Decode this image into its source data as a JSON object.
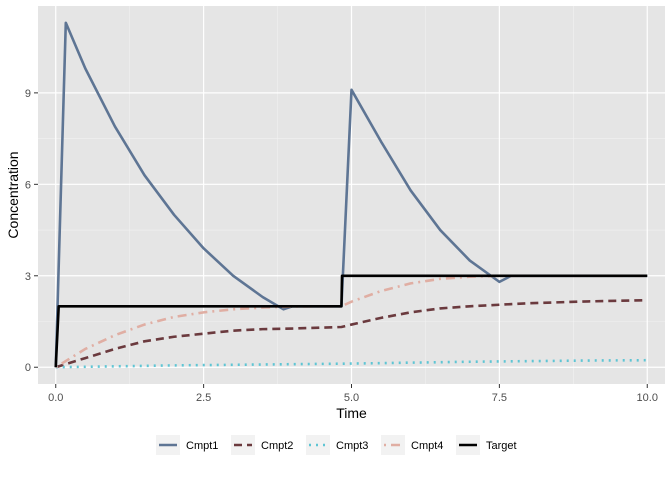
{
  "chart_data": {
    "type": "line",
    "xlabel": "Time",
    "ylabel": "Concentration",
    "xlim": [
      -0.3,
      10.3
    ],
    "ylim": [
      -0.55,
      11.85
    ],
    "x_ticks": [
      0.0,
      2.5,
      5.0,
      7.5,
      10.0
    ],
    "x_tick_labels": [
      "0.0",
      "2.5",
      "5.0",
      "7.5",
      "10.0"
    ],
    "y_ticks": [
      0,
      3,
      6,
      9
    ],
    "y_tick_labels": [
      "0",
      "3",
      "6",
      "9"
    ],
    "grid": true,
    "background": "#e5e5e5",
    "legend_position": "bottom",
    "series": [
      {
        "name": "Cmpt1",
        "color": "#5e7594",
        "dash": "solid",
        "points": [
          [
            0.0,
            0.0
          ],
          [
            0.17,
            11.3
          ],
          [
            0.5,
            9.8
          ],
          [
            1.0,
            7.9
          ],
          [
            1.5,
            6.3
          ],
          [
            2.0,
            5.0
          ],
          [
            2.5,
            3.9
          ],
          [
            3.0,
            3.0
          ],
          [
            3.5,
            2.3
          ],
          [
            3.85,
            1.9
          ],
          [
            4.0,
            2.0
          ],
          [
            4.8,
            2.0
          ],
          [
            4.83,
            2.0
          ],
          [
            5.0,
            9.1
          ],
          [
            5.5,
            7.4
          ],
          [
            6.0,
            5.8
          ],
          [
            6.5,
            4.5
          ],
          [
            7.0,
            3.5
          ],
          [
            7.5,
            2.8
          ],
          [
            7.7,
            3.0
          ],
          [
            10.0,
            3.0
          ]
        ]
      },
      {
        "name": "Cmpt2",
        "color": "#6b3a3e",
        "dash": "dashed",
        "points": [
          [
            0.0,
            0.0
          ],
          [
            0.5,
            0.3
          ],
          [
            1.0,
            0.6
          ],
          [
            1.5,
            0.85
          ],
          [
            2.0,
            1.0
          ],
          [
            2.5,
            1.1
          ],
          [
            3.0,
            1.2
          ],
          [
            3.5,
            1.25
          ],
          [
            4.0,
            1.27
          ],
          [
            4.5,
            1.3
          ],
          [
            4.83,
            1.32
          ],
          [
            5.0,
            1.4
          ],
          [
            5.5,
            1.62
          ],
          [
            6.0,
            1.8
          ],
          [
            6.5,
            1.93
          ],
          [
            7.0,
            2.0
          ],
          [
            7.5,
            2.05
          ],
          [
            8.0,
            2.1
          ],
          [
            9.0,
            2.16
          ],
          [
            10.0,
            2.2
          ]
        ]
      },
      {
        "name": "Cmpt3",
        "color": "#5ec5d4",
        "dash": "dotted",
        "points": [
          [
            0.0,
            0.0
          ],
          [
            1.0,
            0.03
          ],
          [
            2.0,
            0.06
          ],
          [
            3.0,
            0.08
          ],
          [
            4.0,
            0.1
          ],
          [
            5.0,
            0.12
          ],
          [
            6.0,
            0.15
          ],
          [
            7.0,
            0.18
          ],
          [
            8.0,
            0.2
          ],
          [
            9.0,
            0.22
          ],
          [
            10.0,
            0.23
          ]
        ]
      },
      {
        "name": "Cmpt4",
        "color": "#e0aea3",
        "dash": "dotdash",
        "points": [
          [
            0.0,
            0.0
          ],
          [
            0.5,
            0.6
          ],
          [
            1.0,
            1.05
          ],
          [
            1.5,
            1.4
          ],
          [
            2.0,
            1.65
          ],
          [
            2.5,
            1.8
          ],
          [
            3.0,
            1.9
          ],
          [
            3.5,
            1.96
          ],
          [
            4.0,
            1.99
          ],
          [
            4.5,
            2.0
          ],
          [
            4.83,
            2.0
          ],
          [
            5.0,
            2.15
          ],
          [
            5.5,
            2.5
          ],
          [
            6.0,
            2.75
          ],
          [
            6.5,
            2.9
          ],
          [
            7.0,
            2.97
          ],
          [
            7.5,
            3.0
          ],
          [
            10.0,
            3.0
          ]
        ]
      },
      {
        "name": "Target",
        "color": "#000000",
        "dash": "solid",
        "points": [
          [
            0.0,
            0.0
          ],
          [
            0.05,
            2.0
          ],
          [
            4.83,
            2.0
          ],
          [
            4.84,
            3.0
          ],
          [
            10.0,
            3.0
          ]
        ]
      }
    ]
  }
}
